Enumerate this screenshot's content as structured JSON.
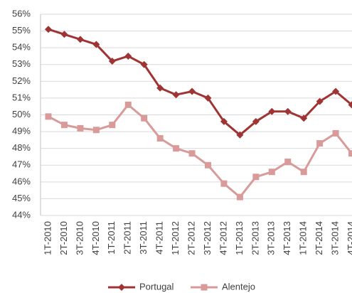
{
  "chart_data": {
    "type": "line",
    "categories": [
      "1T-2010",
      "2T-2010",
      "3T-2010",
      "4T-2010",
      "1T-2011",
      "2T-2011",
      "3T-2011",
      "4T-2011",
      "1T-2012",
      "2T-2012",
      "3T-2012",
      "4T-2012",
      "1T-2013",
      "2T-2013",
      "3T-2013",
      "4T-2013",
      "1T-2014",
      "2T-2014",
      "3T-2014",
      "4T-2014"
    ],
    "series": [
      {
        "name": "Portugal",
        "color": "#9e3434",
        "marker": "diamond",
        "values": [
          55.1,
          54.8,
          54.5,
          54.2,
          53.2,
          53.5,
          53.0,
          51.6,
          51.2,
          51.4,
          51.0,
          49.6,
          48.8,
          49.6,
          50.2,
          50.2,
          49.8,
          50.8,
          51.4,
          50.6
        ]
      },
      {
        "name": "Alentejo",
        "color": "#d99a9a",
        "marker": "square",
        "values": [
          49.9,
          49.4,
          49.2,
          49.1,
          49.4,
          50.6,
          49.8,
          48.6,
          48.0,
          47.7,
          47.0,
          45.9,
          45.1,
          46.3,
          46.6,
          47.2,
          46.6,
          48.3,
          48.9,
          47.7
        ]
      }
    ],
    "ylim": [
      44,
      56
    ],
    "yticks": [
      {
        "value": 44,
        "label": "44%"
      },
      {
        "value": 45,
        "label": "45%"
      },
      {
        "value": 46,
        "label": "46%"
      },
      {
        "value": 47,
        "label": "47%"
      },
      {
        "value": 48,
        "label": "48%"
      },
      {
        "value": 49,
        "label": "49%"
      },
      {
        "value": 50,
        "label": "50%"
      },
      {
        "value": 51,
        "label": "51%"
      },
      {
        "value": 52,
        "label": "52%"
      },
      {
        "value": 53,
        "label": "53%"
      },
      {
        "value": 54,
        "label": "54%"
      },
      {
        "value": 55,
        "label": "55%"
      },
      {
        "value": 56,
        "label": "56%"
      }
    ],
    "grid": true
  }
}
